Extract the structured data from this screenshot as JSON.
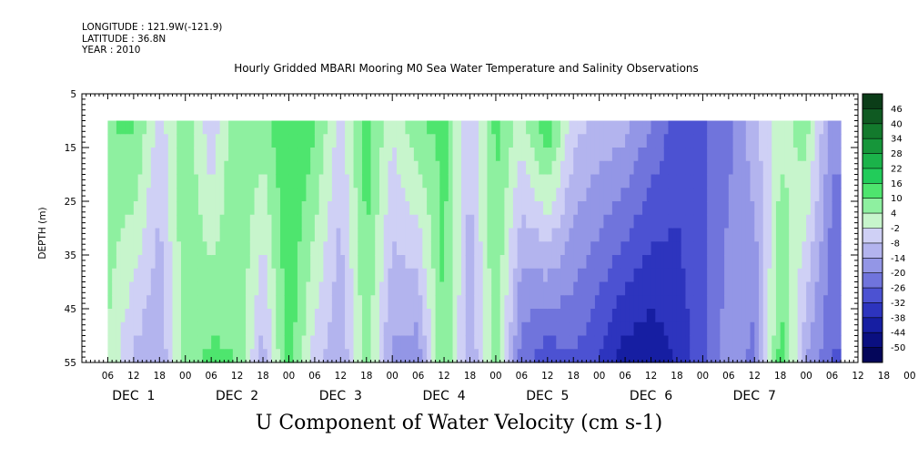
{
  "meta": {
    "longitude": "LONGITUDE : 121.9W(-121.9)",
    "latitude": "LATITUDE : 36.8N",
    "year": "YEAR : 2010"
  },
  "title": "Hourly Gridded MBARI Mooring M0 Sea Water Temperature and Salinity Observations",
  "caption": "U Component of Water Velocity (cm s-1)",
  "chart_data": {
    "type": "heatmap",
    "title": "Hourly Gridded MBARI Mooring M0 Sea Water Temperature and Salinity Observations",
    "variable": "U Component of Water Velocity (cm s-1)",
    "ylabel": "DEPTH (m)",
    "ylim": [
      55,
      5
    ],
    "y_ticks": [
      "5",
      "15",
      "25",
      "35",
      "45",
      "55"
    ],
    "data_depth_range": [
      10,
      55
    ],
    "x_hour_ticks": [
      "06",
      "12",
      "18",
      "00",
      "06",
      "12",
      "18",
      "00",
      "06",
      "12",
      "18",
      "00",
      "06",
      "12",
      "18",
      "00",
      "06",
      "12",
      "18",
      "00",
      "06",
      "12",
      "18",
      "00",
      "06",
      "12",
      "18",
      "00",
      "06",
      "12",
      "18",
      "00"
    ],
    "x_day_labels": [
      "DEC  1",
      "DEC  2",
      "DEC  3",
      "DEC  4",
      "DEC  5",
      "DEC  6",
      "DEC  7"
    ],
    "time_range_hours": [
      6,
      176
    ],
    "colorbar": {
      "levels": [
        "46",
        "40",
        "34",
        "28",
        "22",
        "16",
        "10",
        "4",
        "-2",
        "-8",
        "-14",
        "-20",
        "-26",
        "-32",
        "-38",
        "-44",
        "-50"
      ],
      "colors": [
        "#0b3d18",
        "#0f5a22",
        "#137a2d",
        "#16963a",
        "#1bb34a",
        "#22cc5a",
        "#4ee56e",
        "#8ef0a0",
        "#c7f5cc",
        "#cfd0f5",
        "#b3b4ee",
        "#9396e6",
        "#7074dc",
        "#4c52d2",
        "#2d34be",
        "#161ea2",
        "#0a0f80",
        "#04065a"
      ],
      "range": [
        -50,
        52
      ]
    },
    "u_profile": {
      "hours_from_dec1_00": [
        6,
        12,
        18,
        24,
        30,
        36,
        42,
        48,
        54,
        60,
        66,
        72,
        78,
        84,
        90,
        96,
        102,
        108,
        114,
        120,
        126,
        132,
        138,
        144,
        150,
        156,
        162,
        168,
        174
      ],
      "surface_10m": [
        12,
        14,
        -2,
        12,
        -4,
        12,
        10,
        18,
        14,
        -2,
        16,
        2,
        12,
        14,
        -4,
        14,
        4,
        18,
        -2,
        -6,
        -8,
        -16,
        -24,
        -22,
        -18,
        -6,
        4,
        10,
        -14
      ],
      "bottom_55m": [
        6,
        -6,
        -10,
        10,
        14,
        12,
        -8,
        16,
        -2,
        -10,
        10,
        -12,
        -14,
        14,
        -10,
        10,
        -20,
        -26,
        -22,
        -28,
        -36,
        -38,
        -32,
        -24,
        -12,
        -18,
        16,
        -10,
        -22
      ]
    }
  }
}
